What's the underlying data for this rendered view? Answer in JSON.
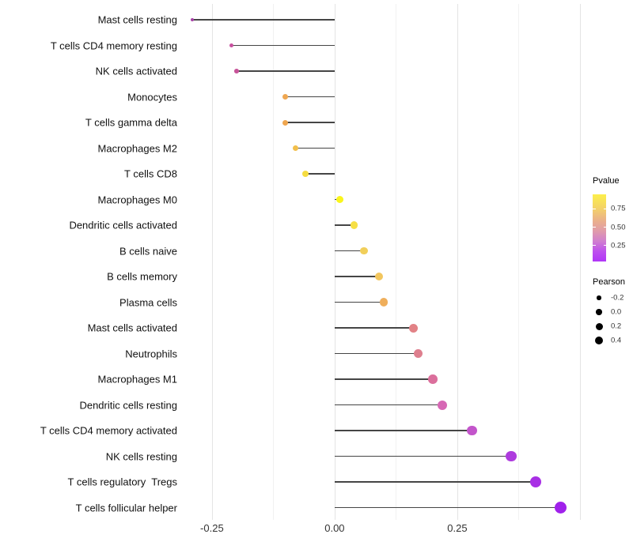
{
  "chart_data": {
    "type": "scatter",
    "subtype": "lollipop",
    "title": "",
    "xlabel": "",
    "ylabel": "",
    "xlim": [
      -0.303,
      0.592
    ],
    "grid": {
      "major": [
        -0.25,
        0,
        0.25,
        0.5
      ],
      "minor": [
        -0.125,
        0.125,
        0.375
      ]
    },
    "x_ticks": [
      {
        "value": -0.25,
        "label": "-0.25"
      },
      {
        "value": 0,
        "label": "0.00"
      },
      {
        "value": 0.25,
        "label": "0.25"
      }
    ],
    "rows": [
      {
        "label": "Mast cells resting",
        "pearson": -0.29,
        "size": 4.0,
        "color": "#A843A8"
      },
      {
        "label": "T cells CD4 memory resting",
        "pearson": -0.21,
        "size": 5.2,
        "color": "#C8519F"
      },
      {
        "label": "NK cells activated",
        "pearson": -0.2,
        "size": 5.6,
        "color": "#C75499"
      },
      {
        "label": "Monocytes",
        "pearson": -0.1,
        "size": 7.0,
        "color": "#EFA751"
      },
      {
        "label": "T cells gamma delta",
        "pearson": -0.1,
        "size": 7.0,
        "color": "#EFA64F"
      },
      {
        "label": "Macrophages M2",
        "pearson": -0.08,
        "size": 7.5,
        "color": "#F2BF4B"
      },
      {
        "label": "T cells CD8",
        "pearson": -0.06,
        "size": 8.0,
        "color": "#F5DC41"
      },
      {
        "label": "Macrophages M0",
        "pearson": 0.01,
        "size": 9.0,
        "color": "#FAF51B"
      },
      {
        "label": "Dendritic cells activated",
        "pearson": 0.04,
        "size": 9.3,
        "color": "#F6DF45"
      },
      {
        "label": "B cells naive",
        "pearson": 0.06,
        "size": 9.6,
        "color": "#F1CF5A"
      },
      {
        "label": "B cells memory",
        "pearson": 0.09,
        "size": 10.0,
        "color": "#F2C65E"
      },
      {
        "label": "Plasma cells",
        "pearson": 0.1,
        "size": 10.3,
        "color": "#EFAE5B"
      },
      {
        "label": "Mast cells activated",
        "pearson": 0.16,
        "size": 11.0,
        "color": "#E28286"
      },
      {
        "label": "Neutrophils",
        "pearson": 0.17,
        "size": 11.3,
        "color": "#DE7F8E"
      },
      {
        "label": "Macrophages M1",
        "pearson": 0.2,
        "size": 11.7,
        "color": "#DB6F9C"
      },
      {
        "label": "Dendritic cells resting",
        "pearson": 0.22,
        "size": 12.0,
        "color": "#D768B5"
      },
      {
        "label": "T cells CD4 memory activated",
        "pearson": 0.28,
        "size": 12.8,
        "color": "#C355CB"
      },
      {
        "label": "NK cells resting",
        "pearson": 0.36,
        "size": 13.8,
        "color": "#AE3BDE"
      },
      {
        "label": "T cells regulatory  Tregs",
        "pearson": 0.41,
        "size": 14.5,
        "color": "#A82FE5"
      },
      {
        "label": "T cells follicular helper",
        "pearson": 0.46,
        "size": 15.2,
        "color": "#A021EB"
      }
    ],
    "legend": {
      "pvalue": {
        "title": "Pvalue",
        "gradient": [
          {
            "color": "#FCEF4B",
            "pos": 0
          },
          {
            "color": "#F4D367",
            "pos": 0.2
          },
          {
            "color": "#EAAF8C",
            "pos": 0.4
          },
          {
            "color": "#E09BAB",
            "pos": 0.55
          },
          {
            "color": "#D07FD0",
            "pos": 0.7
          },
          {
            "color": "#BD50EE",
            "pos": 0.85
          },
          {
            "color": "#B136F7",
            "pos": 1
          }
        ],
        "ticks": [
          {
            "label": "0.75",
            "pos": 0.217
          },
          {
            "label": "0.50",
            "pos": 0.49
          },
          {
            "label": "0.25",
            "pos": 0.76
          }
        ]
      },
      "pearson": {
        "title": "Pearson",
        "items": [
          {
            "label": "-0.2",
            "size": 5.5
          },
          {
            "label": "0.0",
            "size": 7.5
          },
          {
            "label": "0.2",
            "size": 9.0
          },
          {
            "label": "0.4",
            "size": 10.5
          }
        ]
      }
    }
  }
}
